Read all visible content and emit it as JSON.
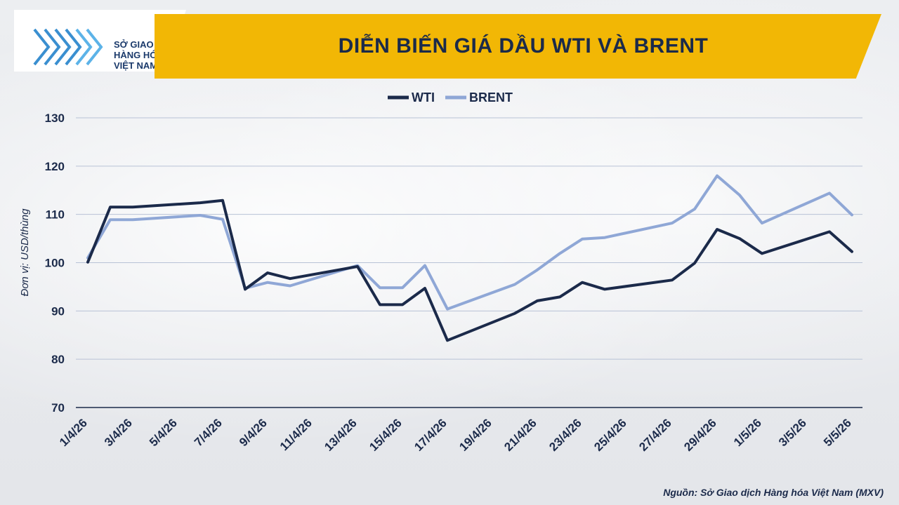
{
  "header": {
    "title": "DIỄN BIẾN GIÁ DẦU WTI VÀ BRENT",
    "logo_lines": [
      "SỞ GIAO DỊCH",
      "HÀNG HÓA",
      "VIỆT NAM"
    ]
  },
  "source": "Nguồn: Sở Giao dịch Hàng hóa Việt Nam (MXV)",
  "colors": {
    "banner": "#f2b705",
    "wti": "#1b2a4a",
    "brent": "#8fa7d6",
    "text": "#1b2a4a"
  },
  "chart_data": {
    "type": "line",
    "title": "DIỄN BIẾN GIÁ DẦU WTI VÀ BRENT",
    "ylabel": "Đơn vị: USD/thùng",
    "xlabel": "",
    "ylim": [
      70,
      130
    ],
    "yticks": [
      70,
      80,
      90,
      100,
      110,
      120,
      130
    ],
    "grid": true,
    "legend_position": "top-center",
    "x": [
      "1/4/26",
      "2/4/26",
      "3/4/26",
      "6/4/26",
      "7/4/26",
      "8/4/26",
      "9/4/26",
      "10/4/26",
      "13/4/26",
      "14/4/26",
      "15/4/26",
      "16/4/26",
      "17/4/26",
      "20/4/26",
      "21/4/26",
      "22/4/26",
      "23/4/26",
      "24/4/26",
      "27/4/26",
      "28/4/26",
      "29/4/26",
      "30/4/26",
      "1/5/26",
      "4/5/26",
      "5/5/26"
    ],
    "xtick_labels": [
      "1/4/26",
      "3/4/26",
      "5/4/26",
      "7/4/26",
      "9/4/26",
      "11/4/26",
      "13/4/26",
      "15/4/26",
      "17/4/26",
      "19/4/26",
      "21/4/26",
      "23/4/26",
      "25/4/26",
      "27/4/26",
      "29/4/26",
      "1/5/26",
      "3/5/26",
      "5/5/26"
    ],
    "series": [
      {
        "name": "WTI",
        "values": [
          100.1,
          111.5,
          111.5,
          112.4,
          112.9,
          94.5,
          97.9,
          96.7,
          99.2,
          91.3,
          91.3,
          94.7,
          83.9,
          89.5,
          92.1,
          92.9,
          95.9,
          94.5,
          96.4,
          99.9,
          106.9,
          105.0,
          101.9,
          106.4,
          102.3
        ]
      },
      {
        "name": "BRENT",
        "values": [
          101.0,
          108.9,
          108.9,
          109.8,
          109.0,
          94.7,
          95.9,
          95.2,
          99.4,
          94.8,
          94.8,
          99.4,
          90.4,
          95.5,
          98.5,
          101.9,
          104.9,
          105.2,
          108.2,
          111.1,
          118.0,
          114.0,
          108.2,
          114.4,
          109.9
        ]
      }
    ]
  }
}
